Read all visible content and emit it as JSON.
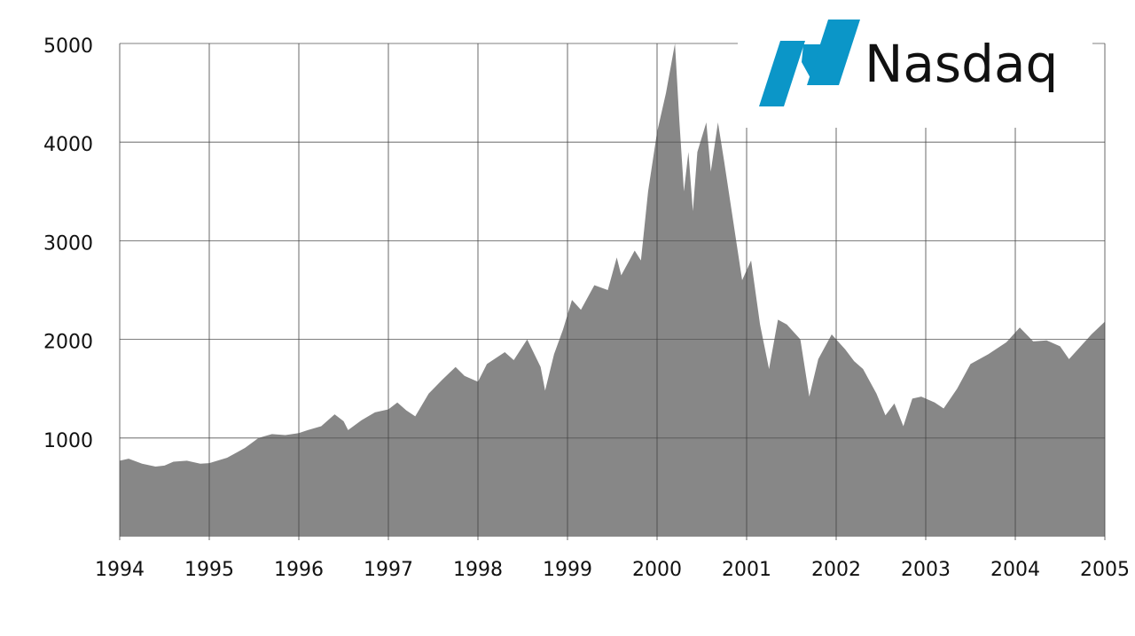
{
  "chart_data": {
    "type": "area",
    "x": [
      1994.0,
      1994.1,
      1994.25,
      1994.4,
      1994.5,
      1994.6,
      1994.75,
      1994.9,
      1995.0,
      1995.2,
      1995.4,
      1995.55,
      1995.7,
      1995.85,
      1996.0,
      1996.1,
      1996.25,
      1996.4,
      1996.5,
      1996.55,
      1996.7,
      1996.85,
      1997.0,
      1997.1,
      1997.2,
      1997.3,
      1997.45,
      1997.6,
      1997.75,
      1997.85,
      1998.0,
      1998.1,
      1998.3,
      1998.4,
      1998.55,
      1998.7,
      1998.75,
      1998.85,
      1998.95,
      1999.05,
      1999.15,
      1999.3,
      1999.45,
      1999.55,
      1999.6,
      1999.75,
      1999.82,
      1999.9,
      2000.0,
      2000.1,
      2000.2,
      2000.25,
      2000.3,
      2000.35,
      2000.4,
      2000.45,
      2000.55,
      2000.6,
      2000.68,
      2000.75,
      2000.85,
      2000.95,
      2001.05,
      2001.15,
      2001.25,
      2001.35,
      2001.45,
      2001.6,
      2001.7,
      2001.8,
      2001.95,
      2002.1,
      2002.2,
      2002.3,
      2002.45,
      2002.55,
      2002.65,
      2002.75,
      2002.85,
      2002.95,
      2003.1,
      2003.2,
      2003.35,
      2003.5,
      2003.7,
      2003.9,
      2004.05,
      2004.2,
      2004.35,
      2004.5,
      2004.6,
      2004.7,
      2004.85,
      2005.0
    ],
    "values": [
      770,
      790,
      740,
      710,
      720,
      760,
      770,
      740,
      745,
      800,
      900,
      1000,
      1040,
      1030,
      1050,
      1080,
      1120,
      1240,
      1170,
      1080,
      1180,
      1260,
      1290,
      1360,
      1280,
      1220,
      1450,
      1590,
      1720,
      1630,
      1570,
      1750,
      1870,
      1790,
      2000,
      1720,
      1480,
      1850,
      2100,
      2400,
      2300,
      2550,
      2500,
      2830,
      2650,
      2900,
      2800,
      3500,
      4100,
      4500,
      5000,
      4200,
      3500,
      3900,
      3300,
      3900,
      4200,
      3700,
      4200,
      3800,
      3200,
      2600,
      2800,
      2150,
      1700,
      2200,
      2150,
      2000,
      1420,
      1800,
      2050,
      1900,
      1780,
      1700,
      1450,
      1230,
      1350,
      1120,
      1400,
      1420,
      1360,
      1300,
      1500,
      1750,
      1850,
      1970,
      2120,
      1980,
      1990,
      1930,
      1800,
      1900,
      2050,
      2180
    ],
    "color": "#878787",
    "xlim": [
      1994,
      2005
    ],
    "xticks": [
      1994,
      1995,
      1996,
      1997,
      1998,
      1999,
      2000,
      2001,
      2002,
      2003,
      2004,
      2005
    ],
    "ylim": [
      0,
      5000
    ],
    "yticks": [
      1000,
      2000,
      3000,
      4000,
      5000
    ],
    "grid": true
  },
  "logo": {
    "text": "Nasdaq"
  }
}
